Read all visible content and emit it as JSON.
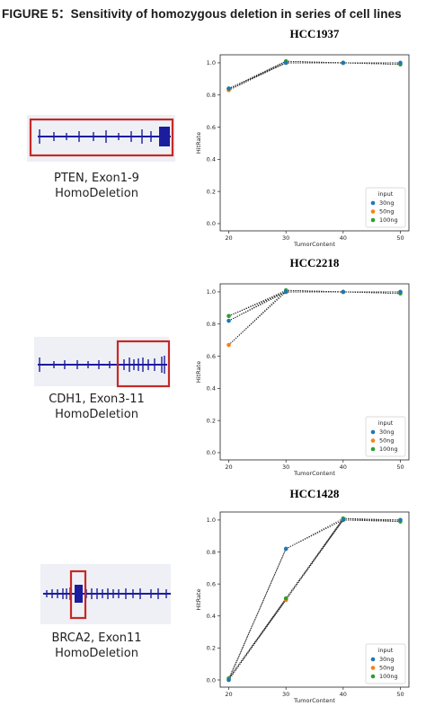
{
  "figure": {
    "title": "FIGURE 5：Sensitivity of homozygous deletion in series of cell lines"
  },
  "colors": {
    "gene_track": "#1c1c9e",
    "highlight_box": "#c62828",
    "series_30ng": "#1f77b4",
    "series_50ng": "#ff7f0e",
    "series_100ng": "#2ca02c",
    "connector": "#222222"
  },
  "gene_panels": [
    {
      "caption_line1": "PTEN, Exon1-9",
      "caption_line2": "HomoDeletion"
    },
    {
      "caption_line1": "CDH1, Exon3-11",
      "caption_line2": "HomoDeletion"
    },
    {
      "caption_line1": "BRCA2, Exon11",
      "caption_line2": "HomoDeletion"
    }
  ],
  "chart_data": [
    {
      "type": "scatter",
      "title": "HCC1937",
      "xlabel": "TumorContent",
      "ylabel": "HitRate",
      "x": [
        20,
        30,
        40,
        50
      ],
      "xticks": [
        "20",
        "30",
        "40",
        "50"
      ],
      "yticks": [
        "0.0",
        "0.2",
        "0.4",
        "0.6",
        "0.8",
        "1.0"
      ],
      "ylim": [
        0,
        1.05
      ],
      "legend_title": "input",
      "legend_position": "lower-right",
      "connectors": "dotted lines between replicate points of adjacent tumor content levels",
      "series": [
        {
          "name": "30ng",
          "values": [
            0.84,
            1.0,
            1.0,
            1.0
          ]
        },
        {
          "name": "50ng",
          "values": [
            0.83,
            1.0,
            1.0,
            1.0
          ]
        },
        {
          "name": "100ng",
          "values": [
            0.84,
            1.01,
            1.0,
            0.99
          ]
        }
      ]
    },
    {
      "type": "scatter",
      "title": "HCC2218",
      "xlabel": "TumorContent",
      "ylabel": "HitRate",
      "x": [
        20,
        30,
        40,
        50
      ],
      "xticks": [
        "20",
        "30",
        "40",
        "50"
      ],
      "yticks": [
        "0.0",
        "0.2",
        "0.4",
        "0.6",
        "0.8",
        "1.0"
      ],
      "ylim": [
        0,
        1.05
      ],
      "legend_title": "input",
      "legend_position": "lower-right",
      "connectors": "dotted lines between replicate points of adjacent tumor content levels",
      "series": [
        {
          "name": "30ng",
          "values": [
            0.82,
            1.0,
            1.0,
            1.0
          ]
        },
        {
          "name": "50ng",
          "values": [
            0.67,
            1.0,
            1.0,
            1.0
          ]
        },
        {
          "name": "100ng",
          "values": [
            0.85,
            1.01,
            1.0,
            0.99
          ]
        }
      ]
    },
    {
      "type": "scatter",
      "title": "HCC1428",
      "xlabel": "TumorContent",
      "ylabel": "HitRate",
      "x": [
        20,
        30,
        40,
        50
      ],
      "xticks": [
        "20",
        "30",
        "40",
        "50"
      ],
      "yticks": [
        "0.0",
        "0.2",
        "0.4",
        "0.6",
        "0.8",
        "1.0"
      ],
      "ylim": [
        0,
        1.05
      ],
      "legend_title": "input",
      "legend_position": "lower-right",
      "connectors": "dotted lines between replicate points of adjacent tumor content levels",
      "series": [
        {
          "name": "30ng",
          "values": [
            0.0,
            0.82,
            1.0,
            1.0
          ]
        },
        {
          "name": "50ng",
          "values": [
            0.0,
            0.5,
            1.0,
            1.0
          ]
        },
        {
          "name": "100ng",
          "values": [
            0.01,
            0.51,
            1.01,
            0.99
          ]
        }
      ]
    }
  ]
}
